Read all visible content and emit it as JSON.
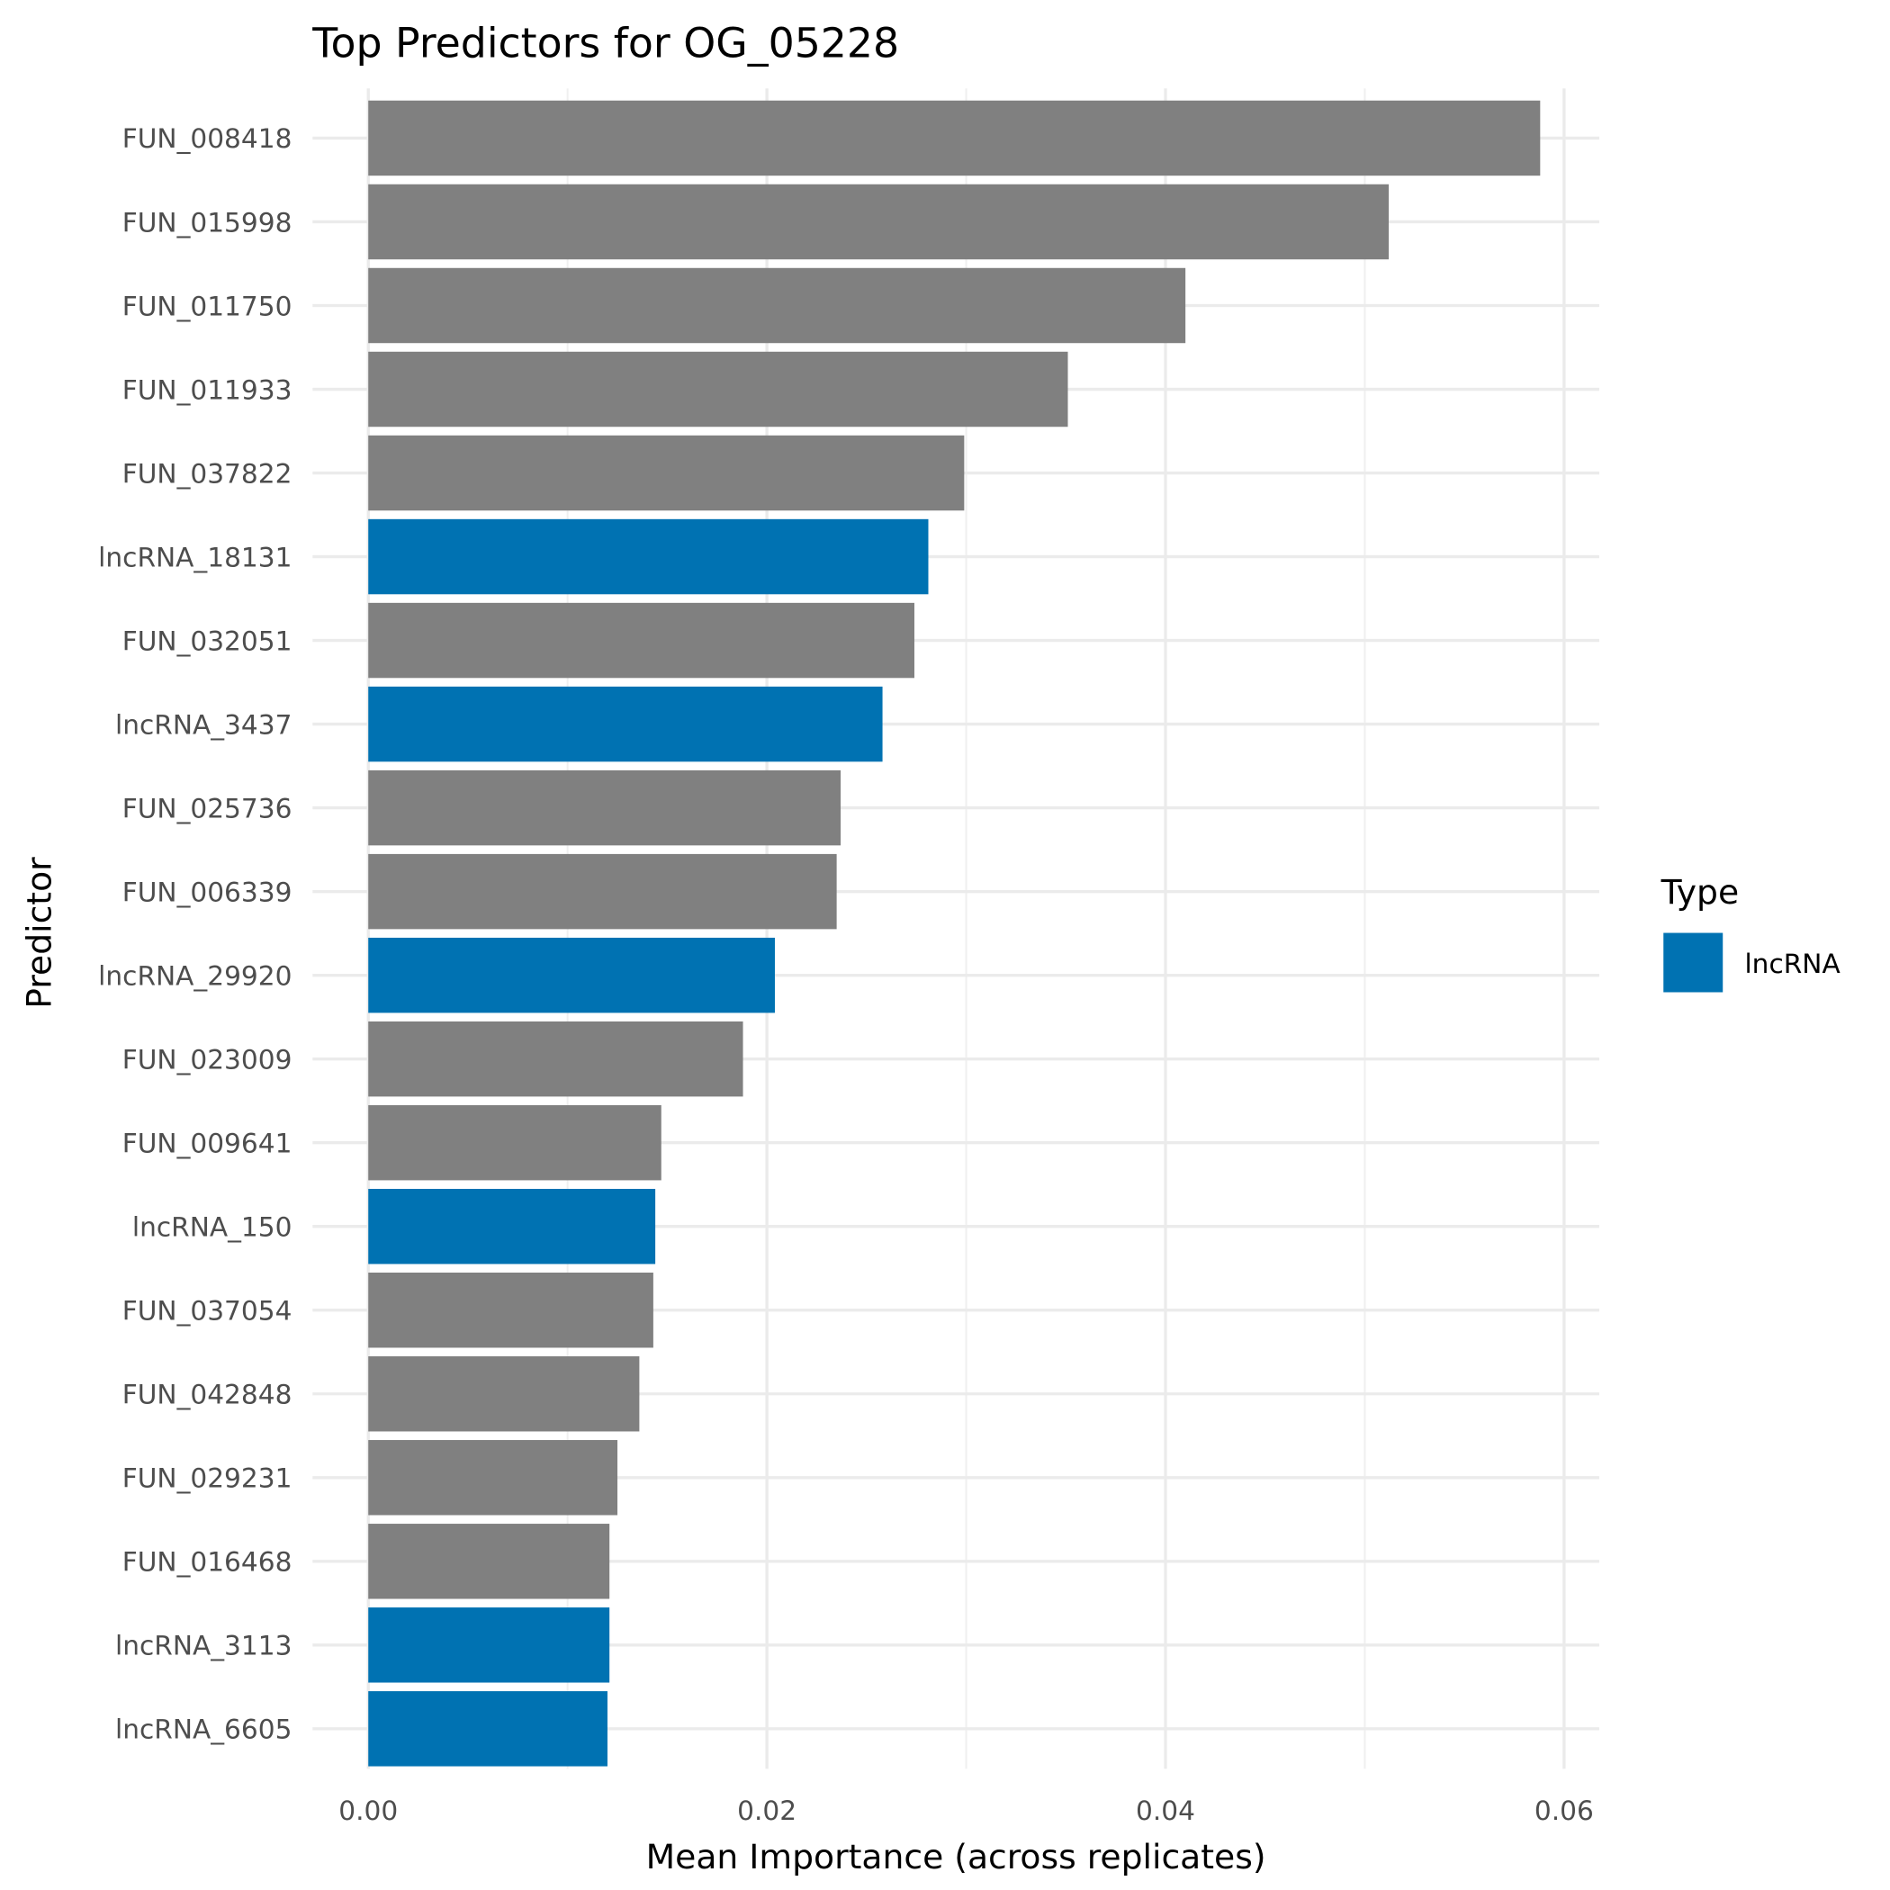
{
  "chart_data": {
    "type": "bar",
    "orientation": "horizontal",
    "title": "Top Predictors for OG_05228",
    "xlabel": "Mean Importance (across replicates)",
    "ylabel": "Predictor",
    "xlim": [
      0,
      0.06
    ],
    "xticks": [
      "0.00",
      "0.02",
      "0.04",
      "0.06"
    ],
    "xtick_values": [
      0,
      0.02,
      0.04,
      0.06
    ],
    "grid": true,
    "legend": {
      "title": "Type",
      "placement": "right",
      "entries": [
        {
          "label": "lncRNA",
          "color": "#0072B2"
        }
      ]
    },
    "colors": {
      "FUN": "#808080",
      "lncRNA": "#0072B2"
    },
    "categories": [
      "FUN_008418",
      "FUN_015998",
      "FUN_011750",
      "FUN_011933",
      "FUN_037822",
      "lncRNA_18131",
      "FUN_032051",
      "lncRNA_3437",
      "FUN_025736",
      "FUN_006339",
      "lncRNA_29920",
      "FUN_023009",
      "FUN_009641",
      "lncRNA_150",
      "FUN_037054",
      "FUN_042848",
      "FUN_029231",
      "FUN_016468",
      "lncRNA_3113",
      "lncRNA_6605"
    ],
    "values": [
      0.0588,
      0.0512,
      0.041,
      0.0351,
      0.0299,
      0.0281,
      0.0274,
      0.0258,
      0.0237,
      0.0235,
      0.0204,
      0.0188,
      0.0147,
      0.0144,
      0.0143,
      0.0136,
      0.0125,
      0.0121,
      0.0121,
      0.012
    ],
    "types": [
      "FUN",
      "FUN",
      "FUN",
      "FUN",
      "FUN",
      "lncRNA",
      "FUN",
      "lncRNA",
      "FUN",
      "FUN",
      "lncRNA",
      "FUN",
      "FUN",
      "lncRNA",
      "FUN",
      "FUN",
      "FUN",
      "FUN",
      "lncRNA",
      "lncRNA"
    ]
  }
}
